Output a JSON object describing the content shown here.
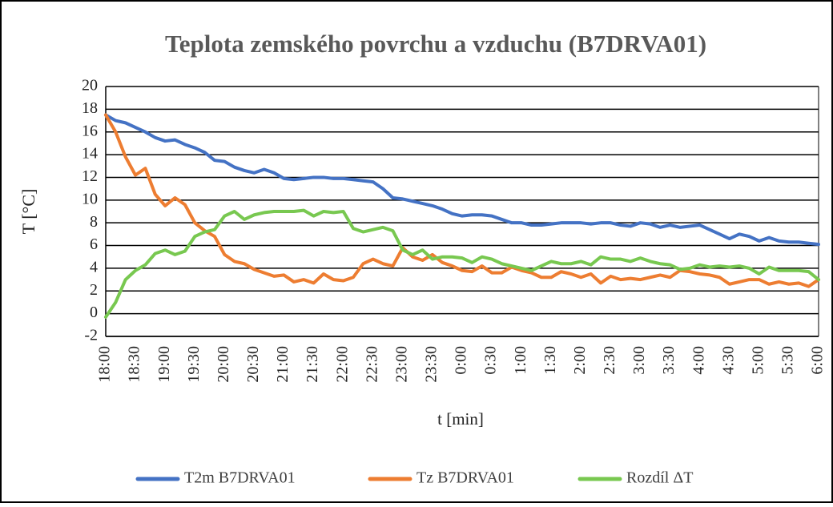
{
  "chart_data": {
    "type": "line",
    "title": "Teplota zemského povrchu a vzduchu (B7DRVA01)",
    "x_label": "t [min]",
    "y_label": "T [°C]",
    "categories": [
      "18:00",
      null,
      null,
      "18:30",
      null,
      null,
      "19:00",
      null,
      null,
      "19:30",
      null,
      null,
      "20:00",
      null,
      null,
      "20:30",
      null,
      null,
      "21:00",
      null,
      null,
      "21:30",
      null,
      null,
      "22:00",
      null,
      null,
      "22:30",
      null,
      null,
      "23:00",
      null,
      null,
      "23:30",
      null,
      null,
      "0:00",
      null,
      null,
      "0:30",
      null,
      null,
      "1:00",
      null,
      null,
      "1:30",
      null,
      null,
      "2:00",
      null,
      null,
      "2:30",
      null,
      null,
      "3:00",
      null,
      null,
      "3:30",
      null,
      null,
      "4:00",
      null,
      null,
      "4:30",
      null,
      null,
      "5:00",
      null,
      null,
      "5:30",
      null,
      null,
      "6:00"
    ],
    "series": [
      {
        "name": "T2m B7DRVA01",
        "color": "#4472c4",
        "values": [
          17.5,
          17.0,
          16.8,
          16.4,
          16.0,
          15.5,
          15.2,
          15.3,
          14.9,
          14.6,
          14.2,
          13.5,
          13.4,
          12.9,
          12.6,
          12.4,
          12.7,
          12.4,
          11.9,
          11.8,
          11.9,
          12.0,
          12.0,
          11.9,
          11.9,
          11.8,
          11.7,
          11.6,
          11.0,
          10.2,
          10.1,
          9.9,
          9.7,
          9.5,
          9.2,
          8.8,
          8.6,
          8.7,
          8.7,
          8.6,
          8.3,
          8.0,
          8.0,
          7.8,
          7.8,
          7.9,
          8.0,
          8.0,
          8.0,
          7.9,
          8.0,
          8.0,
          7.8,
          7.7,
          8.0,
          7.9,
          7.6,
          7.8,
          7.6,
          7.7,
          7.8,
          7.4,
          7.0,
          6.6,
          7.0,
          6.8,
          6.4,
          6.7,
          6.4,
          6.3,
          6.3,
          6.2,
          6.1
        ]
      },
      {
        "name": "Tz B7DRVA01",
        "color": "#ed7d31",
        "values": [
          17.5,
          16.0,
          13.8,
          12.2,
          12.8,
          10.5,
          9.5,
          10.2,
          9.6,
          8.0,
          7.3,
          6.8,
          5.2,
          4.6,
          4.4,
          3.9,
          3.6,
          3.3,
          3.4,
          2.8,
          3.0,
          2.7,
          3.5,
          3.0,
          2.9,
          3.2,
          4.4,
          4.8,
          4.4,
          4.2,
          5.8,
          5.0,
          4.7,
          5.2,
          4.5,
          4.2,
          3.8,
          3.7,
          4.2,
          3.6,
          3.6,
          4.1,
          3.8,
          3.6,
          3.2,
          3.2,
          3.7,
          3.5,
          3.2,
          3.5,
          2.7,
          3.3,
          3.0,
          3.1,
          3.0,
          3.2,
          3.4,
          3.2,
          3.8,
          3.7,
          3.5,
          3.4,
          3.2,
          2.6,
          2.8,
          3.0,
          3.0,
          2.6,
          2.8,
          2.6,
          2.7,
          2.4,
          3.0
        ]
      },
      {
        "name": "Rozdíl ΔT",
        "color": "#78c850",
        "values": [
          -0.3,
          1.0,
          3.0,
          3.8,
          4.3,
          5.3,
          5.6,
          5.2,
          5.5,
          6.8,
          7.2,
          7.4,
          8.6,
          9.0,
          8.3,
          8.7,
          8.9,
          9.0,
          9.0,
          9.0,
          9.1,
          8.6,
          9.0,
          8.9,
          9.0,
          7.5,
          7.2,
          7.4,
          7.6,
          7.3,
          5.6,
          5.2,
          5.6,
          4.8,
          5.0,
          5.0,
          4.9,
          4.5,
          5.0,
          4.8,
          4.4,
          4.2,
          4.0,
          3.8,
          4.2,
          4.6,
          4.4,
          4.4,
          4.6,
          4.3,
          5.0,
          4.8,
          4.8,
          4.6,
          4.9,
          4.6,
          4.4,
          4.3,
          3.9,
          4.0,
          4.3,
          4.1,
          4.2,
          4.1,
          4.2,
          4.0,
          3.5,
          4.1,
          3.8,
          3.8,
          3.8,
          3.7,
          3.0
        ]
      }
    ],
    "ylim": [
      -2,
      20
    ],
    "yticks": [
      -2,
      0,
      2,
      4,
      6,
      8,
      10,
      12,
      14,
      16,
      18,
      20
    ],
    "grid": true,
    "legend": "bottom"
  }
}
